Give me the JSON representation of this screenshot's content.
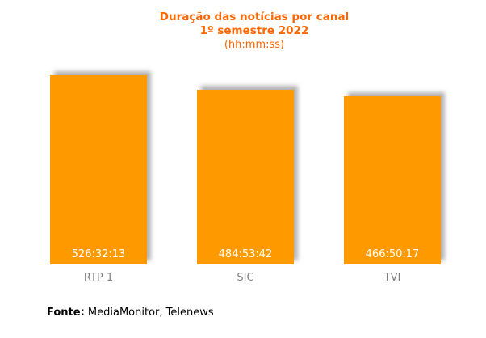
{
  "title": {
    "line1": "Duração das notícias por canal",
    "line2": "1º semestre 2022",
    "line3": "(hh:mm:ss)"
  },
  "chart_data": {
    "type": "bar",
    "title": "Duração das notícias por canal",
    "subtitle": "1º semestre 2022",
    "unit_label": "(hh:mm:ss)",
    "categories": [
      "RTP 1",
      "SIC",
      "TVI"
    ],
    "value_labels": [
      "526:32:13",
      "484:53:42",
      "466:50:17"
    ],
    "values_hours": [
      526.537,
      484.895,
      466.838
    ],
    "xlabel": "",
    "ylabel": "",
    "ylim": [
      0,
      560
    ],
    "grid": false,
    "legend": false,
    "axes_visible": false,
    "bar_color": "#FF9900",
    "title_color": "#FF6600",
    "category_label_color": "#808080",
    "value_label_color": "#FFFFFF"
  },
  "footer": {
    "source_label": "Fonte:",
    "source_text": " MediaMonitor, Telenews"
  }
}
